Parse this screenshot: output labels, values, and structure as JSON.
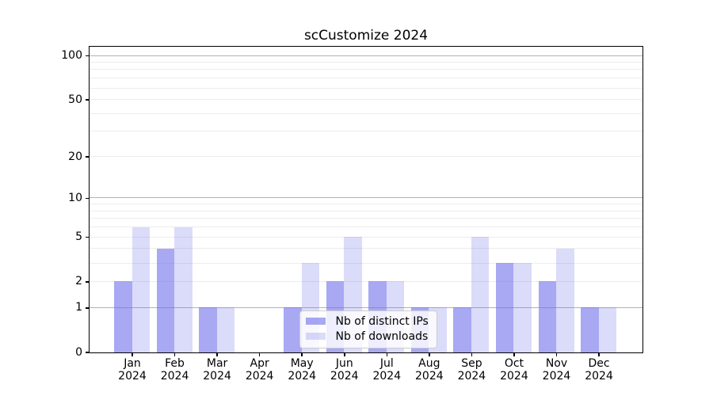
{
  "title": "scCustomize 2024",
  "legend": {
    "items": [
      {
        "label": "Nb of distinct IPs"
      },
      {
        "label": "Nb of downloads"
      }
    ]
  },
  "colors": {
    "distinct_ips": "rgba(105,105,235,0.58)",
    "downloads": "rgba(105,105,235,0.24)",
    "grid_major": "#b2b2b2",
    "grid_minor": "#ececec",
    "spine": "#000000",
    "legend_border": "#cccccc"
  },
  "chart_data": {
    "type": "bar",
    "title": "scCustomize 2024",
    "categories": [
      "Jan 2024",
      "Feb 2024",
      "Mar 2024",
      "Apr 2024",
      "May 2024",
      "Jun 2024",
      "Jul 2024",
      "Aug 2024",
      "Sep 2024",
      "Oct 2024",
      "Nov 2024",
      "Dec 2024"
    ],
    "month_labels": [
      "Jan",
      "Feb",
      "Mar",
      "Apr",
      "May",
      "Jun",
      "Jul",
      "Aug",
      "Sep",
      "Oct",
      "Nov",
      "Dec"
    ],
    "year": "2024",
    "series": [
      {
        "name": "Nb of distinct IPs",
        "values": [
          2,
          4,
          1,
          0,
          1,
          2,
          2,
          1,
          1,
          3,
          2,
          1
        ]
      },
      {
        "name": "Nb of downloads",
        "values": [
          6,
          6,
          1,
          0,
          3,
          5,
          2,
          1,
          5,
          3,
          4,
          1
        ]
      }
    ],
    "y_scale": "log10(1+y)",
    "y_tick_labels": [
      0,
      1,
      2,
      5,
      10,
      20,
      50,
      100
    ],
    "grid_major_values": [
      1,
      10,
      100
    ],
    "grid_minor_values": [
      2,
      3,
      4,
      5,
      6,
      7,
      8,
      9,
      20,
      30,
      40,
      50,
      60,
      70,
      80,
      90
    ],
    "ylim": [
      0,
      115
    ],
    "grid": true,
    "legend_position": "lower center, inside axes"
  }
}
